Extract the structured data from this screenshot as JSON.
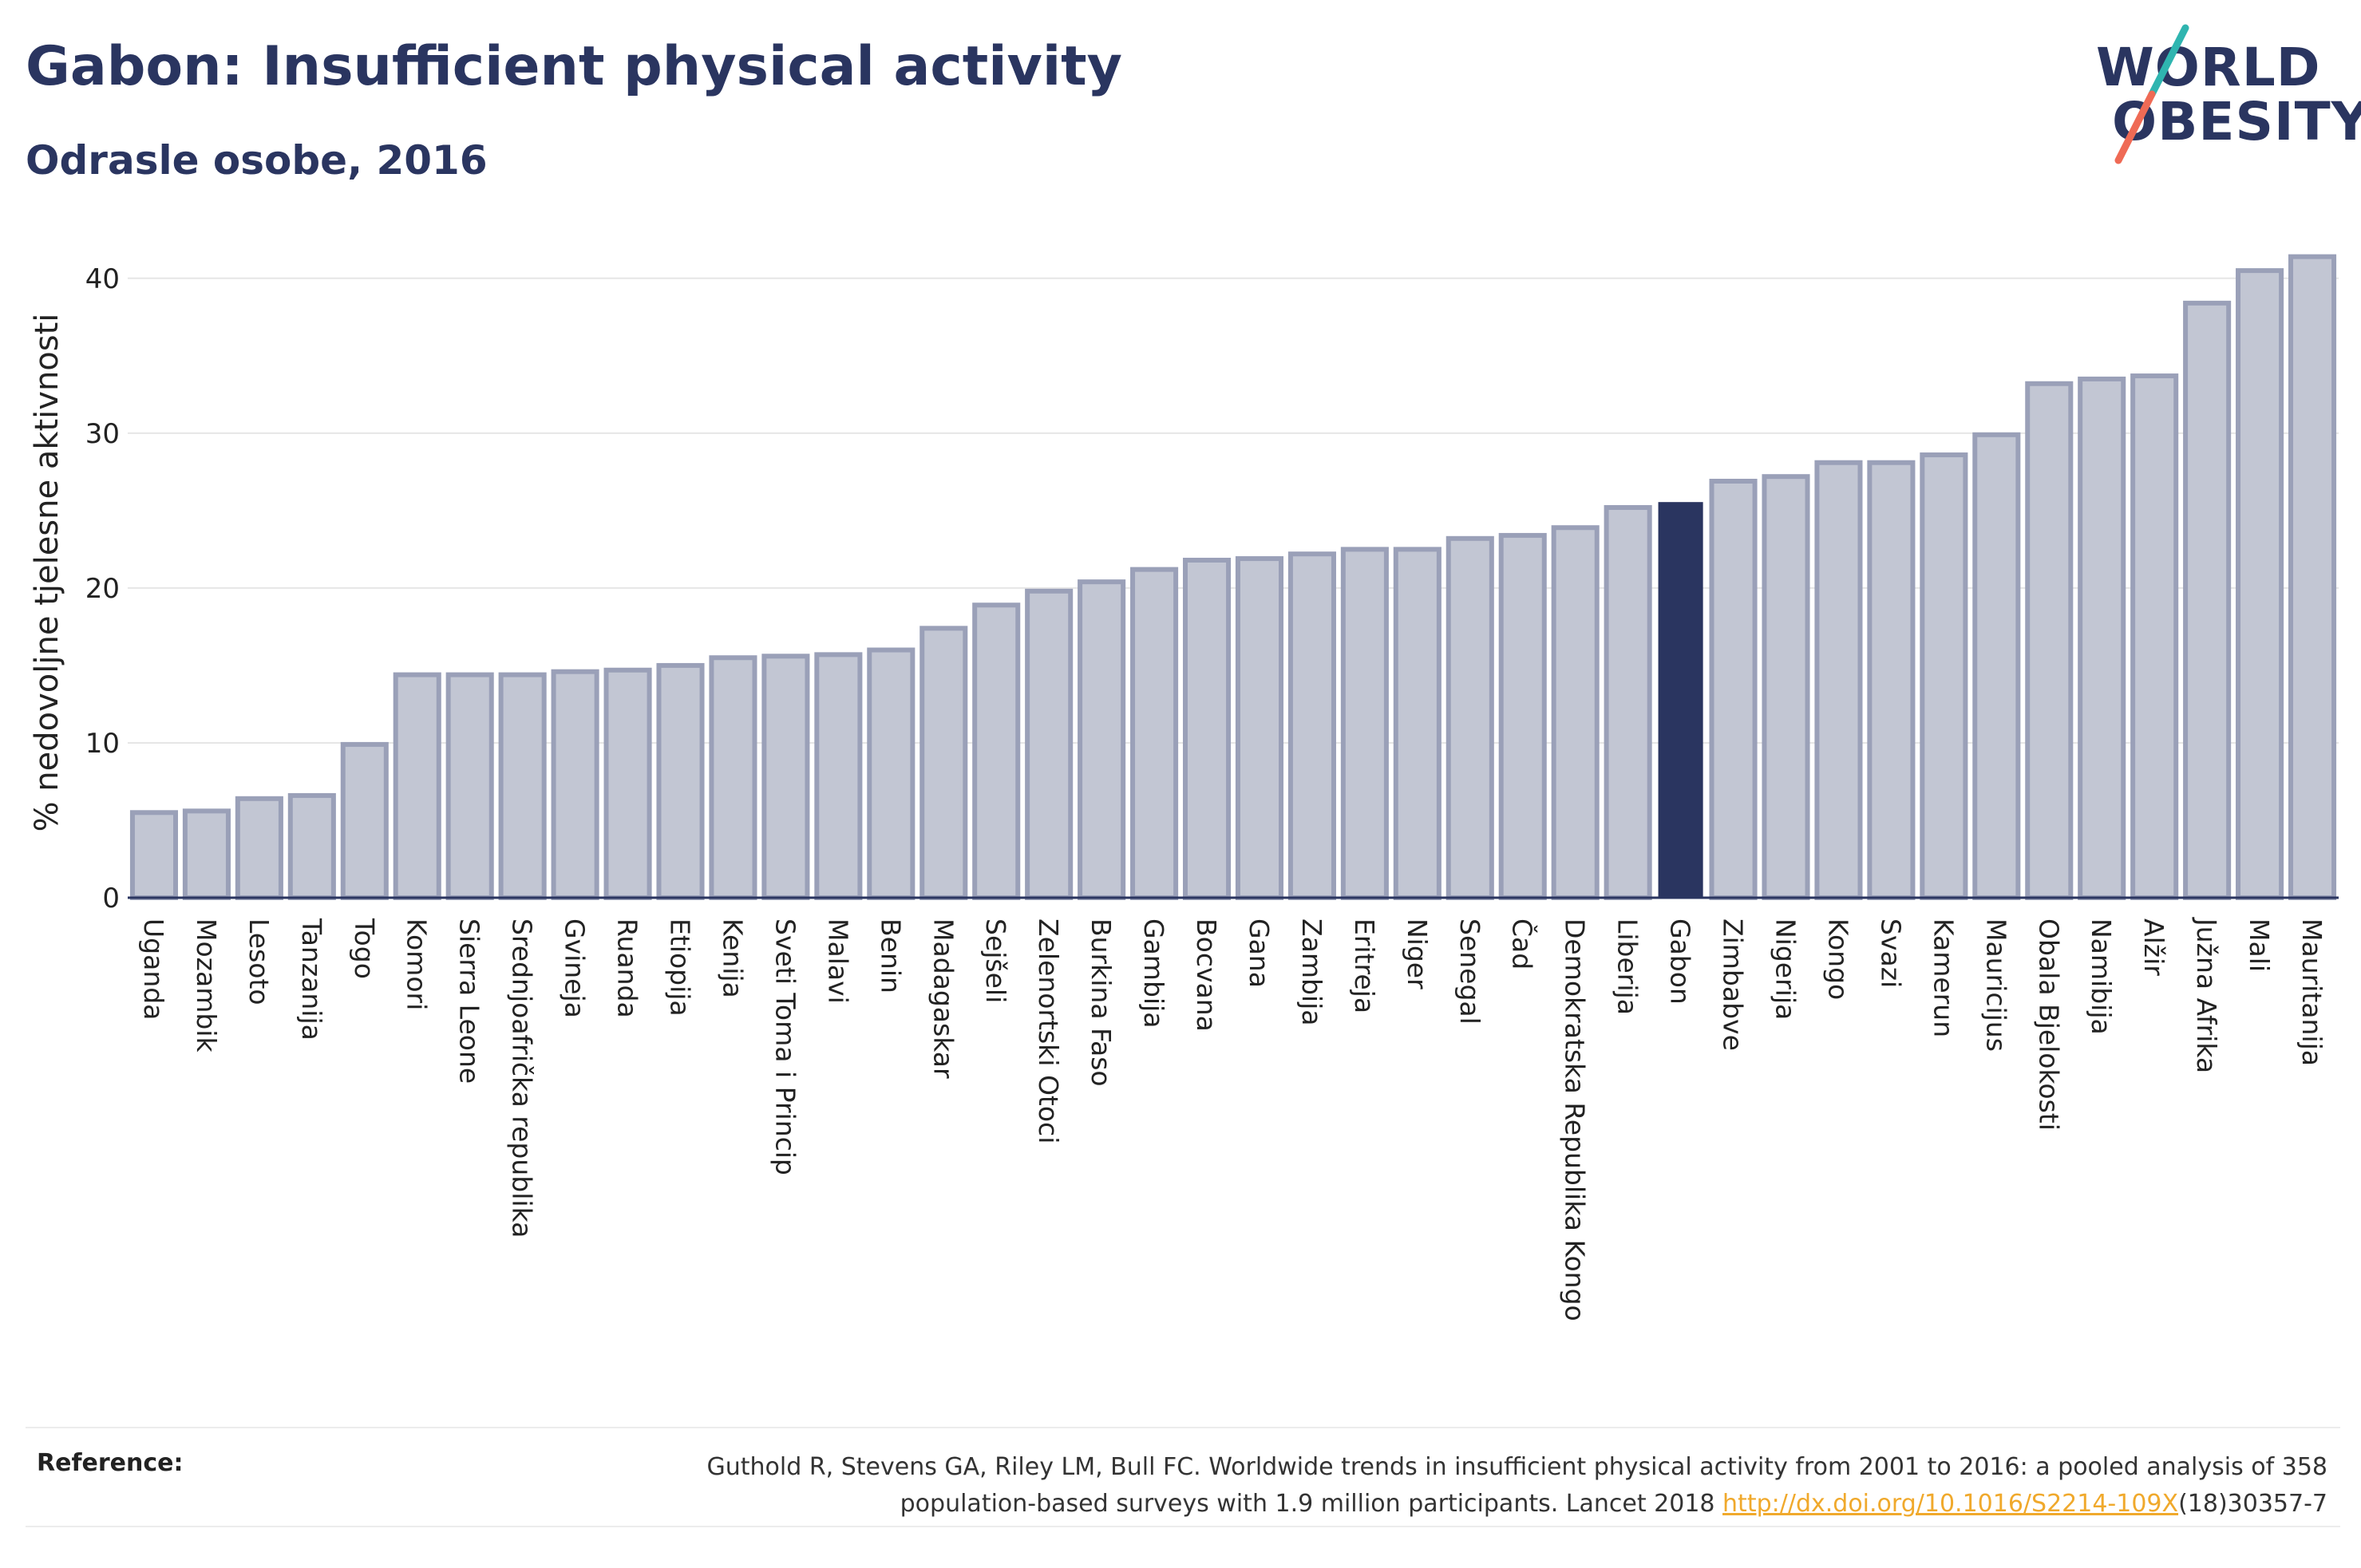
{
  "header": {
    "title": "Gabon: Insufficient physical activity",
    "subtitle": "Odrasle osobe, 2016"
  },
  "logo": {
    "line1": "WORLD",
    "line2": "OBESITY",
    "slash_color_top": "#2fb5b0",
    "slash_color_bottom": "#ef6a55"
  },
  "chart_data": {
    "type": "bar",
    "title": "Gabon: Insufficient physical activity",
    "subtitle": "Odrasle osobe, 2016",
    "ylabel": "% nedovoljne tjelesne aktivnosti",
    "xlabel": "",
    "ylim": [
      0,
      42
    ],
    "yticks": [
      0,
      10,
      20,
      30,
      40
    ],
    "grid": true,
    "highlight": "Gabon",
    "colors": {
      "bar_fill": "#c2c6d3",
      "bar_stroke": "#9aa0b8",
      "highlight_fill": "#2a3560",
      "axis": "#2a3560",
      "grid": "#e6e6e6"
    },
    "categories": [
      "Uganda",
      "Mozambik",
      "Lesoto",
      "Tanzanija",
      "Togo",
      "Komori",
      "Sierra Leone",
      "Srednjoafrička republika",
      "Gvineja",
      "Ruanda",
      "Etiopija",
      "Kenija",
      "Sveti Toma i Princip",
      "Malavi",
      "Benin",
      "Madagaskar",
      "Sejšeli",
      "Zelenortski Otoci",
      "Burkina Faso",
      "Gambija",
      "Bocvana",
      "Gana",
      "Zambija",
      "Eritreja",
      "Niger",
      "Senegal",
      "Čad",
      "Demokratska Republika Kongo",
      "Liberija",
      "Gabon",
      "Zimbabve",
      "Nigerija",
      "Kongo",
      "Svazi",
      "Kamerun",
      "Mauricijus",
      "Obala Bjelokosti",
      "Namibija",
      "Alžir",
      "Južna Afrika",
      "Mali",
      "Mauritanija"
    ],
    "values": [
      5.5,
      5.6,
      6.4,
      6.6,
      9.9,
      14.4,
      14.4,
      14.4,
      14.6,
      14.7,
      15.0,
      15.5,
      15.6,
      15.7,
      16.0,
      17.4,
      18.9,
      19.8,
      20.4,
      21.2,
      21.8,
      21.9,
      22.2,
      22.5,
      22.5,
      23.2,
      23.4,
      23.9,
      25.2,
      25.5,
      26.9,
      27.2,
      28.1,
      28.1,
      28.6,
      29.9,
      33.2,
      33.5,
      33.7,
      38.4,
      40.5,
      41.4
    ]
  },
  "reference": {
    "label": "Reference:",
    "text_line1": "Guthold R, Stevens GA, Riley LM, Bull FC. Worldwide trends in insufficient physical activity from 2001 to 2016: a pooled analysis of 358",
    "text_line2_pre": "population-based surveys with 1.9 million participants. Lancet 2018 ",
    "link": "http://dx.doi.org/10.1016/S2214-109X",
    "text_line2_post": "(18)30357-7"
  }
}
